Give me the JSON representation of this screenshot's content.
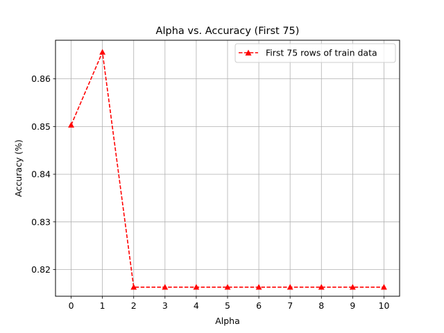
{
  "chart_data": {
    "type": "line",
    "title": "Alpha vs. Accuracy (First 75)",
    "xlabel": "Alpha",
    "ylabel": "Accuracy (%)",
    "x": [
      0,
      1,
      2,
      3,
      4,
      5,
      6,
      7,
      8,
      9,
      10
    ],
    "xticks": [
      "0",
      "1",
      "2",
      "3",
      "4",
      "5",
      "6",
      "7",
      "8",
      "9",
      "10"
    ],
    "yticks": [
      0.82,
      0.83,
      0.84,
      0.85,
      0.86
    ],
    "ytick_labels": [
      "0.82",
      "0.83",
      "0.84",
      "0.85",
      "0.86"
    ],
    "xlim": [
      -0.5,
      10.5
    ],
    "ylim": [
      0.8144,
      0.8681
    ],
    "grid": true,
    "legend_position": "top-right",
    "series": [
      {
        "name": "First 75 rows of train data",
        "color": "#ff0000",
        "line_style": "dashed",
        "marker": "triangle-up",
        "values": [
          0.8503,
          0.8656,
          0.8163,
          0.8163,
          0.8163,
          0.8163,
          0.8163,
          0.8163,
          0.8163,
          0.8163,
          0.8163
        ]
      }
    ]
  }
}
